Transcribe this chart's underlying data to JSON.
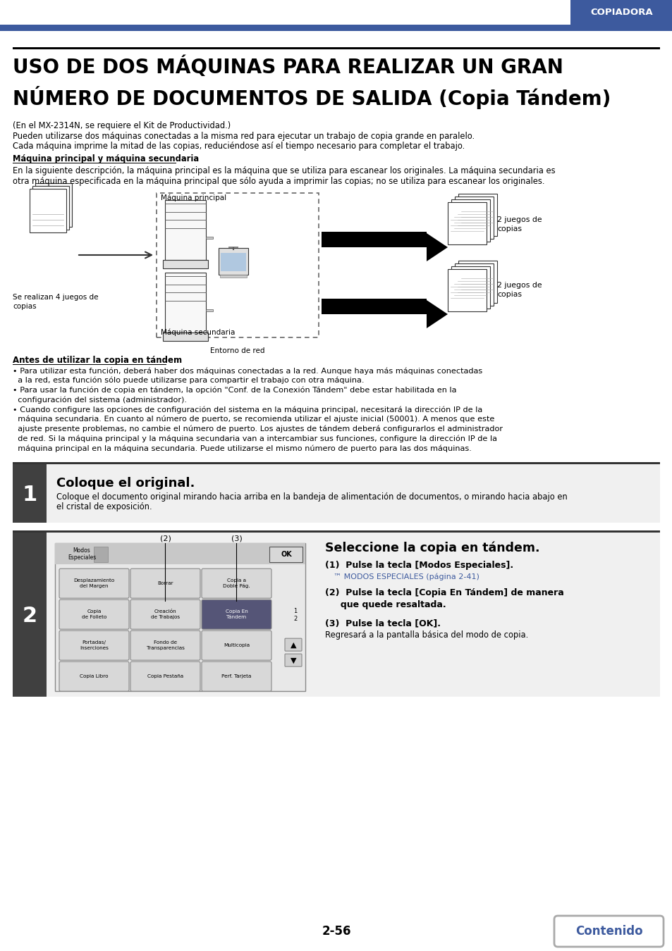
{
  "bg_color": "#ffffff",
  "header_tab_color": "#3d5a9e",
  "header_tab_text": "COPIADORA",
  "title_line1": "USO DE DOS MÁQUINAS PARA REALIZAR UN GRAN",
  "title_line2": "NÚMERO DE DOCUMENTOS DE SALIDA (Copia Tándem)",
  "para1": "(En el MX-2314N, se requiere el Kit de Productividad.)",
  "para2": "Pueden utilizarse dos máquinas conectadas a la misma red para ejecutar un trabajo de copia grande en paralelo.",
  "para3": "Cada máquina imprime la mitad de las copias, reduciéndose así el tiempo necesario para completar el trabajo.",
  "bold_heading": "Máquina principal y máquina secundaria",
  "para4": "En la siguiente descripción, la máquina principal es la máquina que se utiliza para escanear los originales. La máquina secundaria es",
  "para4b": "otra máquina especificada en la máquina principal que sólo ayuda a imprimir las copias; no se utiliza para escanear los originales.",
  "diagram_label1": "Máquina principal",
  "diagram_label2": "Máquina secundaria",
  "diagram_label3": "Entorno de red",
  "diagram_label4": "Se realizan 4 juegos de\ncopias",
  "diagram_label5": "2 juegos de\ncopias",
  "diagram_label6": "2 juegos de\ncopias",
  "section_antes": "Antes de utilizar la copia en tándem",
  "bullet1a": "• Para utilizar esta función, deberá haber dos máquinas conectadas a la red. Aunque haya más máquinas conectadas",
  "bullet1b": "  a la red, esta función sólo puede utilizarse para compartir el trabajo con otra máquina.",
  "bullet2a": "• Para usar la función de copia en tándem, la opción \"Conf. de la Conexión Tándem\" debe estar habilitada en la",
  "bullet2b": "  configuración del sistema (administrador).",
  "bullet3a": "• Cuando configure las opciones de configuración del sistema en la máquina principal, necesitará la dirección IP de la",
  "bullet3b": "  máquina secundaria. En cuanto al número de puerto, se recomienda utilizar el ajuste inicial (50001). A menos que este",
  "bullet3c": "  ajuste presente problemas, no cambie el número de puerto. Los ajustes de tándem deberá configurarlos el administrador",
  "bullet3d": "  de red. Si la máquina principal y la máquina secundaria van a intercambiar sus funciones, configure la dirección IP de la",
  "bullet3e": "  máquina principal en la máquina secundaria. Puede utilizarse el mismo número de puerto para las dos máquinas.",
  "step1_num": "1",
  "step1_title": "Coloque el original.",
  "step1_body1": "Coloque el documento original mirando hacia arriba en la bandeja de alimentación de documentos, o mirando hacia abajo en",
  "step1_body2": "el cristal de exposición.",
  "step2_num": "2",
  "step2_title_right": "Seleccione la copia en tándem.",
  "step2_item1_bold": "(1)  Pulse la tecla [Modos Especiales].",
  "step2_item1_sub": "™ MODOS ESPECIALES (página 2-41)",
  "step2_item2_bold": "(2)  Pulse la tecla [Copia En Tándem] de manera",
  "step2_item2_bold2": "     que quede resaltada.",
  "step2_item3_bold": "(3)  Pulse la tecla [OK].",
  "step2_item3_sub": "Regresará a la pantalla básica del modo de copia.",
  "page_num": "2-56",
  "contenido_text": "Contenido",
  "blue_color": "#3d5a9e",
  "dark_gray": "#404040",
  "mid_gray": "#888888",
  "light_gray": "#d0d0d0",
  "btn_highlight": "#555580"
}
